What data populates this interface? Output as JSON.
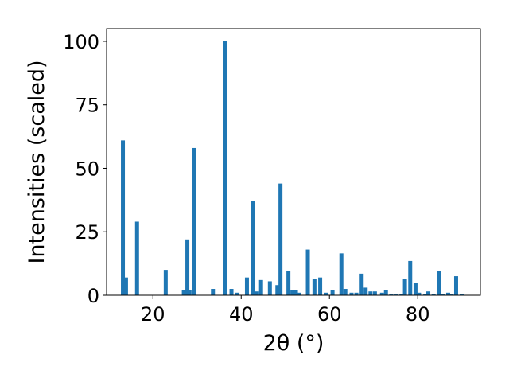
{
  "chart_data": {
    "type": "bar",
    "xlabel": "2θ (°)",
    "ylabel": "Intensities (scaled)",
    "xlim": [
      9.5,
      94.2
    ],
    "ylim": [
      0,
      105
    ],
    "x_ticks": [
      20,
      40,
      60,
      80
    ],
    "y_ticks": [
      0,
      25,
      50,
      75,
      100
    ],
    "grid": false,
    "bar_color": "#1f77b4",
    "x": [
      13.2,
      13.9,
      16.4,
      22.9,
      27.0,
      27.8,
      28.3,
      29.4,
      33.6,
      36.4,
      37.8,
      39.0,
      41.3,
      42.7,
      43.6,
      44.5,
      46.5,
      48.2,
      48.9,
      50.7,
      51.6,
      52.4,
      53.2,
      55.1,
      56.6,
      57.9,
      59.3,
      60.7,
      62.7,
      63.6,
      65.0,
      66.1,
      67.3,
      68.2,
      69.3,
      70.3,
      71.9,
      72.8,
      74.0,
      75.2,
      76.3,
      77.1,
      78.3,
      79.5,
      80.3,
      81.7,
      82.4,
      83.6,
      84.8,
      85.8,
      86.9,
      87.7,
      88.7,
      90.0
    ],
    "values": [
      61,
      7,
      29,
      10,
      2,
      22,
      2,
      58,
      2.5,
      100,
      2.5,
      1,
      7,
      37,
      1.5,
      6,
      5.5,
      4,
      44,
      9.5,
      2,
      2,
      1,
      18,
      6.5,
      7,
      1,
      2,
      16.5,
      2.5,
      1,
      1,
      8.5,
      3,
      1.5,
      1.5,
      1,
      2,
      0.5,
      0.5,
      0.5,
      6.5,
      13.5,
      5,
      1,
      0.5,
      1.5,
      0.5,
      9.5,
      0.5,
      1,
      0.5,
      7.5,
      0.5
    ]
  }
}
